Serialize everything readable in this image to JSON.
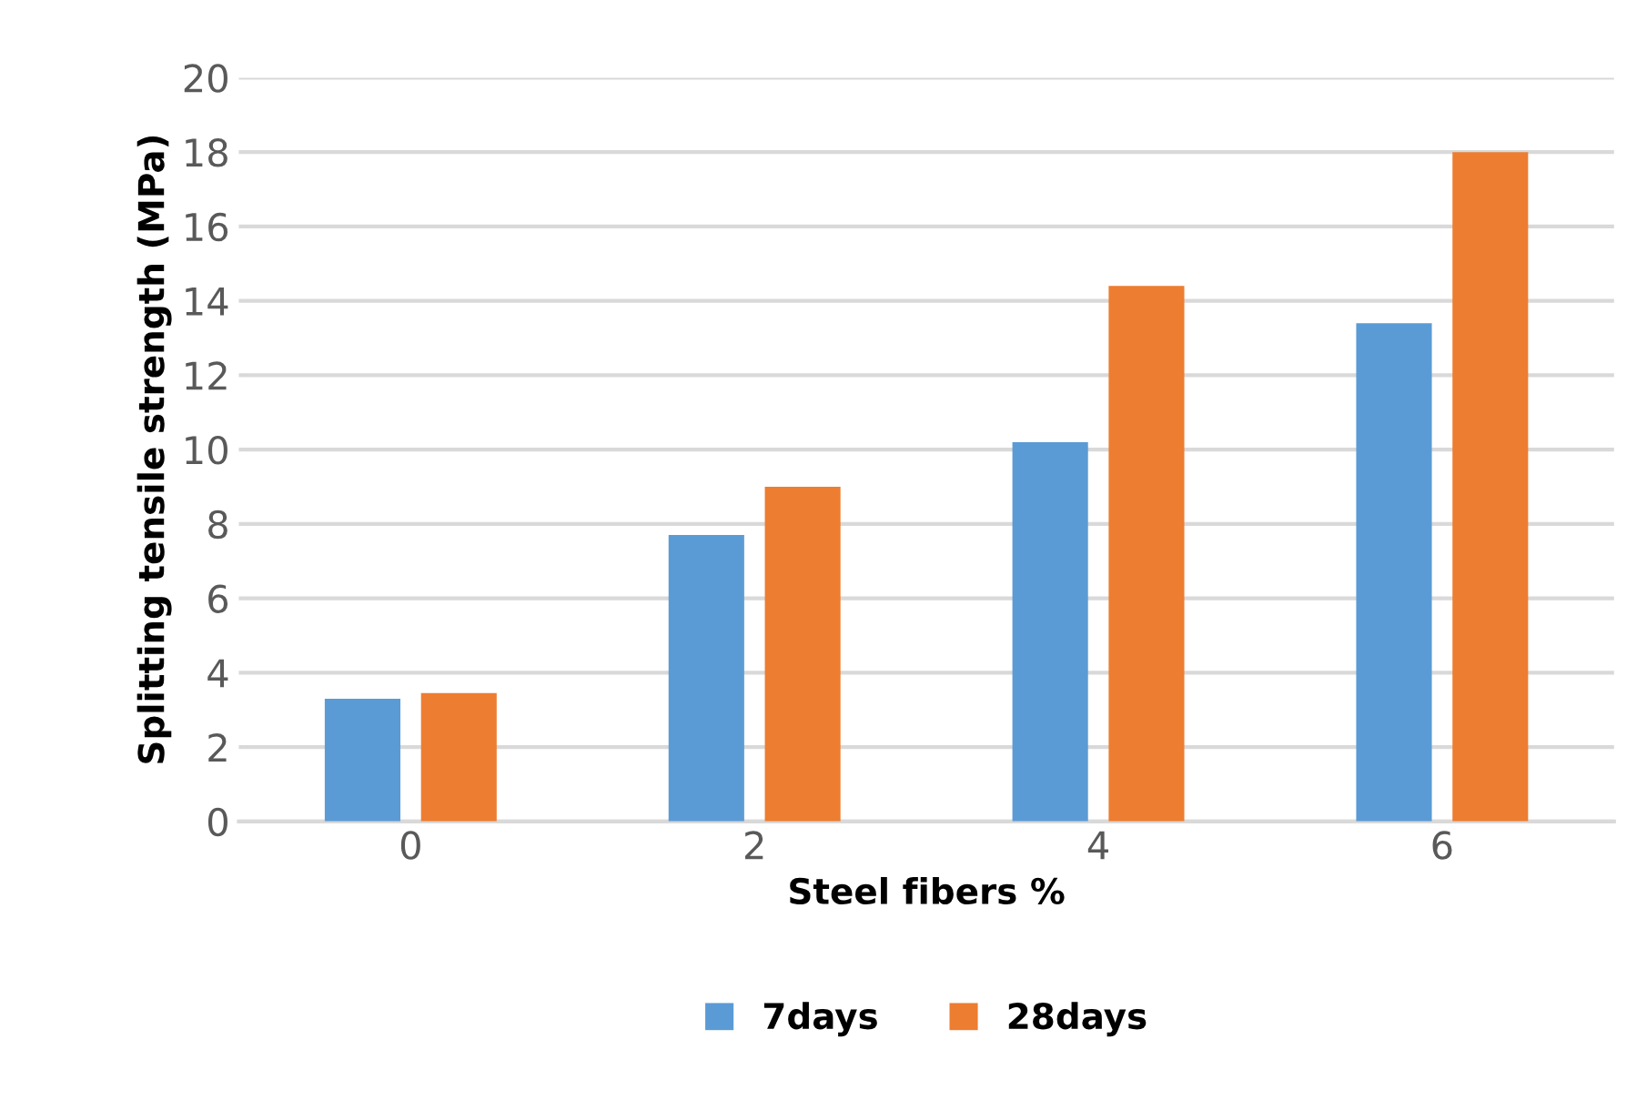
{
  "chart_data": {
    "type": "bar",
    "xlabel": "Steel fibers %",
    "ylabel": "Splitting tensile strength (MPa)",
    "categories": [
      "0",
      "2",
      "4",
      "6"
    ],
    "series": [
      {
        "name": "7days",
        "color": "#5b9bd5",
        "values": [
          3.3,
          7.7,
          10.2,
          13.4
        ]
      },
      {
        "name": "28days",
        "color": "#ed7d31",
        "values": [
          3.45,
          9.0,
          14.4,
          18.0
        ]
      }
    ],
    "ylim": [
      0,
      20
    ],
    "yticks": [
      0,
      2,
      4,
      6,
      8,
      10,
      12,
      14,
      16,
      18,
      20
    ],
    "grid": "y",
    "legend": "bottom"
  }
}
